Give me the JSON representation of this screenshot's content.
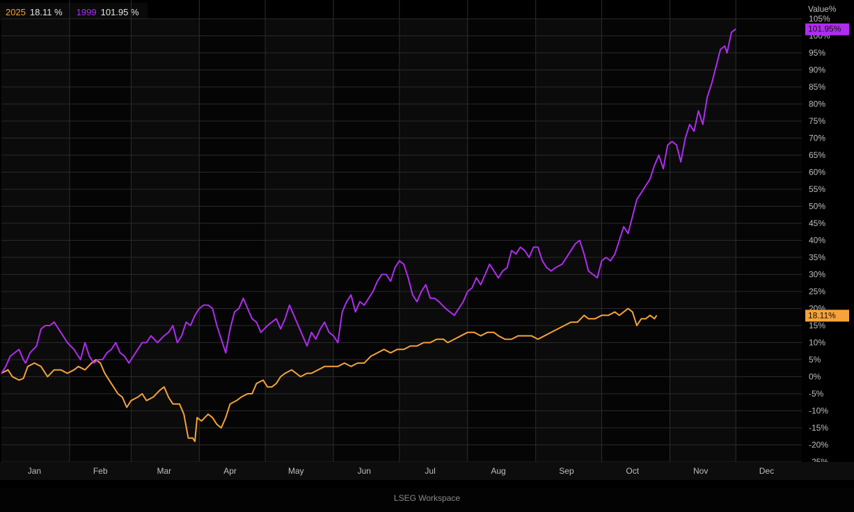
{
  "footer": {
    "text": "LSEG Workspace"
  },
  "colors": {
    "background": "#000000",
    "grid": "#2a2a2a",
    "axis_text": "#bfbfbf"
  },
  "chart_data": {
    "type": "line",
    "title": "",
    "xlabel": "",
    "ylabel": "Value%",
    "ylim": [
      -25,
      105
    ],
    "yticks": [
      105,
      100,
      95,
      90,
      85,
      80,
      75,
      70,
      65,
      60,
      55,
      50,
      45,
      40,
      35,
      30,
      25,
      20,
      15,
      10,
      5,
      0,
      -5,
      -10,
      -15,
      -20,
      -25
    ],
    "ytick_labels": [
      "105%",
      "100%",
      "95%",
      "90%",
      "85%",
      "80%",
      "75%",
      "70%",
      "65%",
      "60%",
      "55%",
      "50%",
      "45%",
      "40%",
      "35%",
      "30%",
      "25%",
      "20%",
      "15%",
      "10%",
      "5%",
      "0%",
      "-5%",
      "-10%",
      "-15%",
      "-20%",
      "-25%"
    ],
    "x_unit": "day of year",
    "xlim": [
      1,
      365
    ],
    "month_ticks": [
      {
        "label": "Jan",
        "day": 16
      },
      {
        "label": "Feb",
        "day": 46
      },
      {
        "label": "Mar",
        "day": 75
      },
      {
        "label": "Apr",
        "day": 105
      },
      {
        "label": "May",
        "day": 135
      },
      {
        "label": "Jun",
        "day": 166
      },
      {
        "label": "Jul",
        "day": 196
      },
      {
        "label": "Aug",
        "day": 227
      },
      {
        "label": "Sep",
        "day": 258
      },
      {
        "label": "Oct",
        "day": 288
      },
      {
        "label": "Nov",
        "day": 319
      },
      {
        "label": "Dec",
        "day": 349
      }
    ],
    "month_boundaries": [
      1,
      32,
      60,
      91,
      121,
      152,
      182,
      213,
      244,
      274,
      305,
      335,
      365
    ],
    "grid": true,
    "legend_position": "top-left",
    "series": [
      {
        "name": "2025",
        "color": "#f5a33a",
        "last_value": "18.11 %",
        "end_tag": "18.11%",
        "points": [
          [
            1,
            1
          ],
          [
            4,
            2
          ],
          [
            6,
            0
          ],
          [
            9,
            -1
          ],
          [
            11,
            -0.5
          ],
          [
            13,
            3
          ],
          [
            16,
            4
          ],
          [
            19,
            3
          ],
          [
            22,
            0
          ],
          [
            25,
            2
          ],
          [
            28,
            2
          ],
          [
            31,
            1
          ],
          [
            34,
            2
          ],
          [
            36,
            3
          ],
          [
            39,
            2
          ],
          [
            42,
            4
          ],
          [
            44,
            5
          ],
          [
            46,
            4
          ],
          [
            48,
            1
          ],
          [
            50,
            -1
          ],
          [
            52,
            -3
          ],
          [
            54,
            -5
          ],
          [
            56,
            -6
          ],
          [
            58,
            -9
          ],
          [
            60,
            -7
          ],
          [
            63,
            -6
          ],
          [
            65,
            -5
          ],
          [
            67,
            -7
          ],
          [
            70,
            -6
          ],
          [
            73,
            -4
          ],
          [
            75,
            -3
          ],
          [
            77,
            -6
          ],
          [
            79,
            -8
          ],
          [
            82,
            -8
          ],
          [
            84,
            -11
          ],
          [
            86,
            -18
          ],
          [
            88,
            -18
          ],
          [
            89,
            -19
          ],
          [
            90,
            -12
          ],
          [
            92,
            -13
          ],
          [
            95,
            -11
          ],
          [
            97,
            -12
          ],
          [
            99,
            -14
          ],
          [
            101,
            -15
          ],
          [
            103,
            -12
          ],
          [
            105,
            -8
          ],
          [
            108,
            -7
          ],
          [
            110,
            -6
          ],
          [
            113,
            -5
          ],
          [
            115,
            -5
          ],
          [
            117,
            -2
          ],
          [
            120,
            -1
          ],
          [
            122,
            -3
          ],
          [
            124,
            -3
          ],
          [
            126,
            -2
          ],
          [
            128,
            0
          ],
          [
            130,
            1
          ],
          [
            133,
            2
          ],
          [
            135,
            1
          ],
          [
            137,
            0
          ],
          [
            140,
            1
          ],
          [
            142,
            1
          ],
          [
            145,
            2
          ],
          [
            148,
            3
          ],
          [
            151,
            3
          ],
          [
            154,
            3
          ],
          [
            157,
            4
          ],
          [
            160,
            3
          ],
          [
            163,
            4
          ],
          [
            166,
            4
          ],
          [
            169,
            6
          ],
          [
            172,
            7
          ],
          [
            175,
            8
          ],
          [
            178,
            7
          ],
          [
            181,
            8
          ],
          [
            184,
            8
          ],
          [
            187,
            9
          ],
          [
            190,
            9
          ],
          [
            193,
            10
          ],
          [
            196,
            10
          ],
          [
            199,
            11
          ],
          [
            202,
            11
          ],
          [
            204,
            10
          ],
          [
            207,
            11
          ],
          [
            210,
            12
          ],
          [
            213,
            13
          ],
          [
            216,
            13
          ],
          [
            219,
            12
          ],
          [
            222,
            13
          ],
          [
            225,
            13
          ],
          [
            227,
            12
          ],
          [
            230,
            11
          ],
          [
            233,
            11
          ],
          [
            236,
            12
          ],
          [
            239,
            12
          ],
          [
            242,
            12
          ],
          [
            245,
            11
          ],
          [
            248,
            12
          ],
          [
            251,
            13
          ],
          [
            254,
            14
          ],
          [
            257,
            15
          ],
          [
            260,
            16
          ],
          [
            263,
            16
          ],
          [
            266,
            18
          ],
          [
            268,
            17
          ],
          [
            271,
            17
          ],
          [
            274,
            18
          ],
          [
            277,
            18
          ],
          [
            280,
            19
          ],
          [
            282,
            18
          ],
          [
            284,
            19
          ],
          [
            286,
            20
          ],
          [
            288,
            19
          ],
          [
            290,
            15
          ],
          [
            292,
            17
          ],
          [
            294,
            17
          ],
          [
            296,
            18
          ],
          [
            298,
            17
          ],
          [
            299,
            18
          ]
        ]
      },
      {
        "name": "1999",
        "color": "#b12cf2",
        "last_value": "101.95 %",
        "end_tag": "101.95%",
        "points": [
          [
            1,
            1
          ],
          [
            3,
            3
          ],
          [
            5,
            6
          ],
          [
            7,
            7
          ],
          [
            9,
            8
          ],
          [
            11,
            5
          ],
          [
            12,
            4
          ],
          [
            14,
            7
          ],
          [
            17,
            9
          ],
          [
            19,
            14
          ],
          [
            21,
            15
          ],
          [
            23,
            15
          ],
          [
            25,
            16
          ],
          [
            28,
            13
          ],
          [
            31,
            10
          ],
          [
            34,
            8
          ],
          [
            37,
            5
          ],
          [
            39,
            10
          ],
          [
            41,
            6
          ],
          [
            43,
            4
          ],
          [
            45,
            5
          ],
          [
            47,
            5
          ],
          [
            49,
            7
          ],
          [
            51,
            8
          ],
          [
            53,
            10
          ],
          [
            55,
            7
          ],
          [
            57,
            6
          ],
          [
            59,
            4
          ],
          [
            61,
            6
          ],
          [
            63,
            8
          ],
          [
            65,
            10
          ],
          [
            67,
            10
          ],
          [
            69,
            12
          ],
          [
            72,
            10
          ],
          [
            75,
            12
          ],
          [
            77,
            13
          ],
          [
            79,
            15
          ],
          [
            81,
            10
          ],
          [
            83,
            12
          ],
          [
            85,
            16
          ],
          [
            87,
            15
          ],
          [
            89,
            18
          ],
          [
            91,
            20
          ],
          [
            93,
            21
          ],
          [
            95,
            21
          ],
          [
            97,
            20
          ],
          [
            99,
            15
          ],
          [
            101,
            11
          ],
          [
            103,
            7
          ],
          [
            105,
            14
          ],
          [
            107,
            19
          ],
          [
            109,
            20
          ],
          [
            111,
            23
          ],
          [
            113,
            20
          ],
          [
            115,
            17
          ],
          [
            117,
            16
          ],
          [
            119,
            13
          ],
          [
            122,
            15
          ],
          [
            124,
            16
          ],
          [
            126,
            17
          ],
          [
            128,
            14
          ],
          [
            130,
            17
          ],
          [
            132,
            21
          ],
          [
            134,
            18
          ],
          [
            136,
            15
          ],
          [
            138,
            12
          ],
          [
            140,
            9
          ],
          [
            142,
            13
          ],
          [
            144,
            11
          ],
          [
            146,
            14
          ],
          [
            148,
            16
          ],
          [
            150,
            13
          ],
          [
            152,
            12
          ],
          [
            154,
            10
          ],
          [
            156,
            19
          ],
          [
            158,
            22
          ],
          [
            160,
            24
          ],
          [
            162,
            19
          ],
          [
            164,
            22
          ],
          [
            166,
            21
          ],
          [
            168,
            23
          ],
          [
            170,
            25
          ],
          [
            172,
            28
          ],
          [
            174,
            30
          ],
          [
            176,
            30
          ],
          [
            178,
            28
          ],
          [
            180,
            32
          ],
          [
            182,
            34
          ],
          [
            184,
            33
          ],
          [
            186,
            29
          ],
          [
            188,
            24
          ],
          [
            190,
            22
          ],
          [
            192,
            25
          ],
          [
            194,
            27
          ],
          [
            196,
            23
          ],
          [
            198,
            23
          ],
          [
            200,
            22
          ],
          [
            203,
            20
          ],
          [
            205,
            19
          ],
          [
            207,
            18
          ],
          [
            209,
            20
          ],
          [
            211,
            22
          ],
          [
            213,
            25
          ],
          [
            215,
            26
          ],
          [
            217,
            29
          ],
          [
            219,
            27
          ],
          [
            221,
            30
          ],
          [
            223,
            33
          ],
          [
            225,
            31
          ],
          [
            227,
            29
          ],
          [
            229,
            31
          ],
          [
            231,
            32
          ],
          [
            233,
            37
          ],
          [
            235,
            36
          ],
          [
            237,
            38
          ],
          [
            239,
            37
          ],
          [
            241,
            35
          ],
          [
            243,
            38
          ],
          [
            245,
            38
          ],
          [
            247,
            34
          ],
          [
            249,
            32
          ],
          [
            251,
            31
          ],
          [
            253,
            32
          ],
          [
            256,
            33
          ],
          [
            258,
            35
          ],
          [
            260,
            37
          ],
          [
            262,
            39
          ],
          [
            264,
            40
          ],
          [
            266,
            36
          ],
          [
            268,
            31
          ],
          [
            270,
            30
          ],
          [
            272,
            29
          ],
          [
            274,
            34
          ],
          [
            276,
            35
          ],
          [
            278,
            34
          ],
          [
            280,
            36
          ],
          [
            282,
            40
          ],
          [
            284,
            44
          ],
          [
            286,
            42
          ],
          [
            288,
            47
          ],
          [
            290,
            52
          ],
          [
            292,
            54
          ],
          [
            294,
            56
          ],
          [
            296,
            58
          ],
          [
            298,
            62
          ],
          [
            300,
            65
          ],
          [
            302,
            61
          ],
          [
            304,
            68
          ],
          [
            306,
            69
          ],
          [
            308,
            68
          ],
          [
            310,
            63
          ],
          [
            312,
            70
          ],
          [
            314,
            74
          ],
          [
            316,
            72
          ],
          [
            318,
            78
          ],
          [
            320,
            74
          ],
          [
            322,
            82
          ],
          [
            324,
            86
          ],
          [
            326,
            91
          ],
          [
            328,
            96
          ],
          [
            330,
            97
          ],
          [
            331,
            95
          ],
          [
            333,
            101
          ],
          [
            335,
            102
          ]
        ]
      }
    ]
  }
}
